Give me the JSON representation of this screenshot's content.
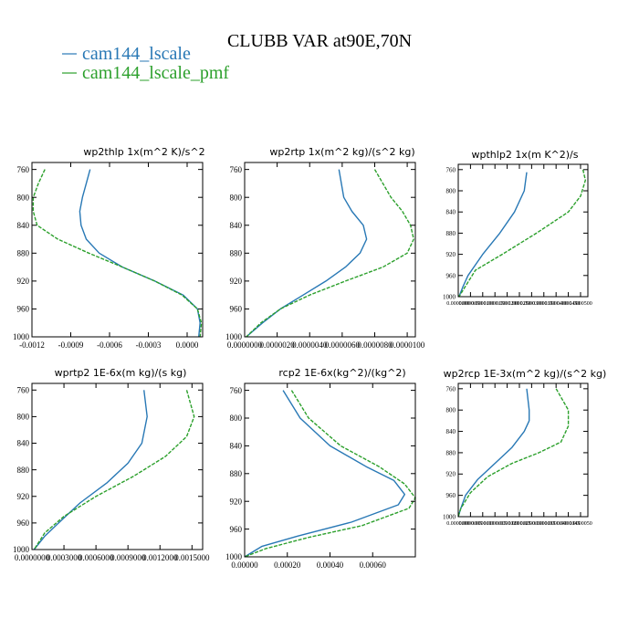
{
  "figure": {
    "title": "CLUBB VAR at90E,70N",
    "legend": [
      {
        "label": "cam144_lscale",
        "color": "#2878b5",
        "dash": false
      },
      {
        "label": "cam144_lscale_pmf",
        "color": "#2ca02c",
        "dash": true
      }
    ]
  },
  "chart_data": [
    {
      "type": "line",
      "title": "wp2thlp   1x(m^2 K)/s^2",
      "ylim": [
        1000,
        750
      ],
      "xlim": [
        -0.0012,
        0.00012
      ],
      "xticks": [
        -0.0012,
        -0.0009,
        -0.0006,
        -0.0003,
        0.0
      ],
      "xtick_labels": [
        "-0.0012",
        "-0.0009",
        "-0.0006",
        "-0.0003",
        "0.0000"
      ],
      "yticks": [
        760,
        800,
        840,
        880,
        920,
        960,
        1000
      ],
      "series": [
        {
          "name": "cam144_lscale",
          "points": [
            [
              -0.00075,
              760
            ],
            [
              -0.00078,
              780
            ],
            [
              -0.00081,
              800
            ],
            [
              -0.00083,
              820
            ],
            [
              -0.00082,
              840
            ],
            [
              -0.00078,
              860
            ],
            [
              -0.00068,
              880
            ],
            [
              -0.0005,
              900
            ],
            [
              -0.00025,
              920
            ],
            [
              -3e-05,
              940
            ],
            [
              8e-05,
              960
            ],
            [
              0.0001,
              980
            ],
            [
              9e-05,
              1000
            ]
          ]
        },
        {
          "name": "cam144_lscale_pmf",
          "points": [
            [
              -0.0011,
              760
            ],
            [
              -0.00115,
              780
            ],
            [
              -0.00119,
              800
            ],
            [
              -0.00119,
              820
            ],
            [
              -0.00116,
              840
            ],
            [
              -0.001,
              860
            ],
            [
              -0.00076,
              880
            ],
            [
              -0.0005,
              900
            ],
            [
              -0.00025,
              920
            ],
            [
              -4e-05,
              940
            ],
            [
              8e-05,
              960
            ],
            [
              0.00011,
              980
            ],
            [
              0.0001,
              1000
            ]
          ]
        }
      ]
    },
    {
      "type": "line",
      "title": "wp2rtp   1x(m^2 kg)/(s^2 kg)",
      "ylim": [
        1000,
        750
      ],
      "xlim": [
        0.0,
        1.05e-05
      ],
      "xticks": [
        0.0,
        2e-06,
        4e-06,
        6e-06,
        8e-06,
        1e-05
      ],
      "xtick_labels": [
        "0.0000000",
        "0.0000020",
        "0.0000040",
        "0.0000060",
        "0.0000080",
        "0.0000100"
      ],
      "yticks": [
        760,
        800,
        840,
        880,
        920,
        960,
        1000
      ],
      "series": [
        {
          "name": "cam144_lscale",
          "points": [
            [
              5.8e-06,
              760
            ],
            [
              6.1e-06,
              800
            ],
            [
              6.6e-06,
              820
            ],
            [
              7.3e-06,
              840
            ],
            [
              7.5e-06,
              860
            ],
            [
              7.1e-06,
              880
            ],
            [
              6.2e-06,
              900
            ],
            [
              5e-06,
              920
            ],
            [
              3.6e-06,
              940
            ],
            [
              2.2e-06,
              960
            ],
            [
              1.1e-06,
              980
            ],
            [
              1e-07,
              1000
            ]
          ]
        },
        {
          "name": "cam144_lscale_pmf",
          "points": [
            [
              8e-06,
              760
            ],
            [
              8.5e-06,
              780
            ],
            [
              9e-06,
              800
            ],
            [
              9.7e-06,
              820
            ],
            [
              1.02e-05,
              840
            ],
            [
              1.04e-05,
              860
            ],
            [
              1e-05,
              880
            ],
            [
              8.5e-06,
              900
            ],
            [
              6.2e-06,
              920
            ],
            [
              4e-06,
              940
            ],
            [
              2.2e-06,
              960
            ],
            [
              1e-06,
              980
            ],
            [
              1e-07,
              1000
            ]
          ]
        }
      ]
    },
    {
      "type": "line",
      "title": "wpthlp2   1x(m K^2)/s",
      "ylim": [
        1000,
        750
      ],
      "xlim": [
        0.0,
        5.3e-05
      ],
      "xticks": [
        0.0,
        5e-06,
        1e-05,
        1.5e-05,
        2e-05,
        2.5e-05,
        3e-05,
        3.5e-05,
        4e-05,
        4.5e-05,
        5e-05
      ],
      "xtick_labels": [
        "0.0000000",
        "0.0000050",
        "0.0000100",
        "0.0000150",
        "0.0000200",
        "0.0000250",
        "0.0000300",
        "0.0000350",
        "0.0000400",
        "0.0000450",
        "0.0000500"
      ],
      "yticks": [
        760,
        800,
        840,
        880,
        920,
        960,
        1000
      ],
      "series": [
        {
          "name": "cam144_lscale",
          "points": [
            [
              2.8e-05,
              765
            ],
            [
              2.7e-05,
              800
            ],
            [
              2.3e-05,
              840
            ],
            [
              1.7e-05,
              880
            ],
            [
              1e-05,
              920
            ],
            [
              4e-06,
              960
            ],
            [
              2e-06,
              980
            ],
            [
              3e-07,
              1000
            ]
          ]
        },
        {
          "name": "cam144_lscale_pmf",
          "points": [
            [
              5.1e-05,
              760
            ],
            [
              5.2e-05,
              780
            ],
            [
              5e-05,
              810
            ],
            [
              4.5e-05,
              840
            ],
            [
              3.2e-05,
              880
            ],
            [
              1.8e-05,
              920
            ],
            [
              7e-06,
              950
            ],
            [
              3e-06,
              980
            ],
            [
              3e-07,
              1000
            ]
          ]
        }
      ]
    },
    {
      "type": "line",
      "title": "wprtp2   1E-6x(m kg)/(s kg)",
      "ylim": [
        1000,
        750
      ],
      "xlim": [
        0.0,
        0.0016
      ],
      "xticks": [
        0.0,
        0.0003,
        0.0006,
        0.0009,
        0.0012,
        0.0015
      ],
      "xtick_labels": [
        "0.0000000",
        "0.0003000",
        "0.0006000",
        "0.0009000",
        "0.0012000",
        "0.0015000"
      ],
      "yticks": [
        760,
        800,
        840,
        880,
        920,
        960,
        1000
      ],
      "series": [
        {
          "name": "cam144_lscale",
          "points": [
            [
              0.00105,
              760
            ],
            [
              0.00108,
              800
            ],
            [
              0.00103,
              840
            ],
            [
              0.0009,
              870
            ],
            [
              0.0007,
              900
            ],
            [
              0.00045,
              930
            ],
            [
              0.00025,
              960
            ],
            [
              0.00012,
              980
            ],
            [
              2e-05,
              1000
            ]
          ]
        },
        {
          "name": "cam144_lscale_pmf",
          "points": [
            [
              0.00145,
              760
            ],
            [
              0.00152,
              800
            ],
            [
              0.00145,
              830
            ],
            [
              0.00125,
              860
            ],
            [
              0.00095,
              890
            ],
            [
              0.0006,
              920
            ],
            [
              0.0003,
              950
            ],
            [
              0.00012,
              975
            ],
            [
              2e-05,
              1000
            ]
          ]
        }
      ]
    },
    {
      "type": "line",
      "title": "rcp2   1E-6x(kg^2)/(kg^2)",
      "ylim": [
        1000,
        750
      ],
      "xlim": [
        0.0,
        0.0008
      ],
      "xticks": [
        0.0,
        0.0002,
        0.0004,
        0.0006
      ],
      "xtick_labels": [
        "0.00000",
        "0.00020",
        "0.00040",
        "0.00060"
      ],
      "yticks": [
        760,
        800,
        840,
        880,
        920,
        960,
        1000
      ],
      "series": [
        {
          "name": "cam144_lscale",
          "points": [
            [
              0.00018,
              760
            ],
            [
              0.00026,
              800
            ],
            [
              0.0004,
              840
            ],
            [
              0.00057,
              870
            ],
            [
              0.0007,
              890
            ],
            [
              0.00075,
              910
            ],
            [
              0.00072,
              925
            ],
            [
              0.0005,
              950
            ],
            [
              0.00025,
              970
            ],
            [
              8e-05,
              985
            ],
            [
              0.0,
              1000
            ]
          ]
        },
        {
          "name": "cam144_lscale_pmf",
          "points": [
            [
              0.00022,
              760
            ],
            [
              0.0003,
              800
            ],
            [
              0.00045,
              840
            ],
            [
              0.00063,
              870
            ],
            [
              0.00075,
              895
            ],
            [
              0.0008,
              915
            ],
            [
              0.00077,
              930
            ],
            [
              0.00055,
              955
            ],
            [
              0.0003,
              972
            ],
            [
              0.0001,
              988
            ],
            [
              0.0,
              1000
            ]
          ]
        }
      ]
    },
    {
      "type": "line",
      "title": "wp2rcp   1E-3x(m^2 kg)/(s^2 kg)",
      "ylim": [
        1000,
        750
      ],
      "xlim": [
        0.0,
        5.3e-06
      ],
      "xticks": [
        0.0,
        5e-07,
        1e-06,
        1.5e-06,
        2e-06,
        2.5e-06,
        3e-06,
        3.5e-06,
        4e-06,
        4.5e-06,
        5e-06
      ],
      "xtick_labels": [
        "0.0000000",
        "0.0000005",
        "0.0000010",
        "0.0000015",
        "0.0000020",
        "0.0000025",
        "0.0000030",
        "0.0000035",
        "0.0000040",
        "0.0000045",
        "0.0000050"
      ],
      "yticks": [
        760,
        800,
        840,
        880,
        920,
        960,
        1000
      ],
      "series": [
        {
          "name": "cam144_lscale",
          "points": [
            [
              2.8e-06,
              760
            ],
            [
              2.9e-06,
              800
            ],
            [
              2.9e-06,
              820
            ],
            [
              2.7e-06,
              840
            ],
            [
              2.2e-06,
              870
            ],
            [
              1.5e-06,
              900
            ],
            [
              8e-07,
              930
            ],
            [
              3e-07,
              960
            ],
            [
              1e-07,
              985
            ],
            [
              0.0,
              1000
            ]
          ]
        },
        {
          "name": "cam144_lscale_pmf",
          "points": [
            [
              4e-06,
              760
            ],
            [
              4.5e-06,
              800
            ],
            [
              4.5e-06,
              830
            ],
            [
              4.2e-06,
              860
            ],
            [
              3.3e-06,
              880
            ],
            [
              2.2e-06,
              900
            ],
            [
              1.2e-06,
              925
            ],
            [
              5e-07,
              955
            ],
            [
              1e-07,
              985
            ],
            [
              0.0,
              1000
            ]
          ]
        }
      ]
    }
  ]
}
